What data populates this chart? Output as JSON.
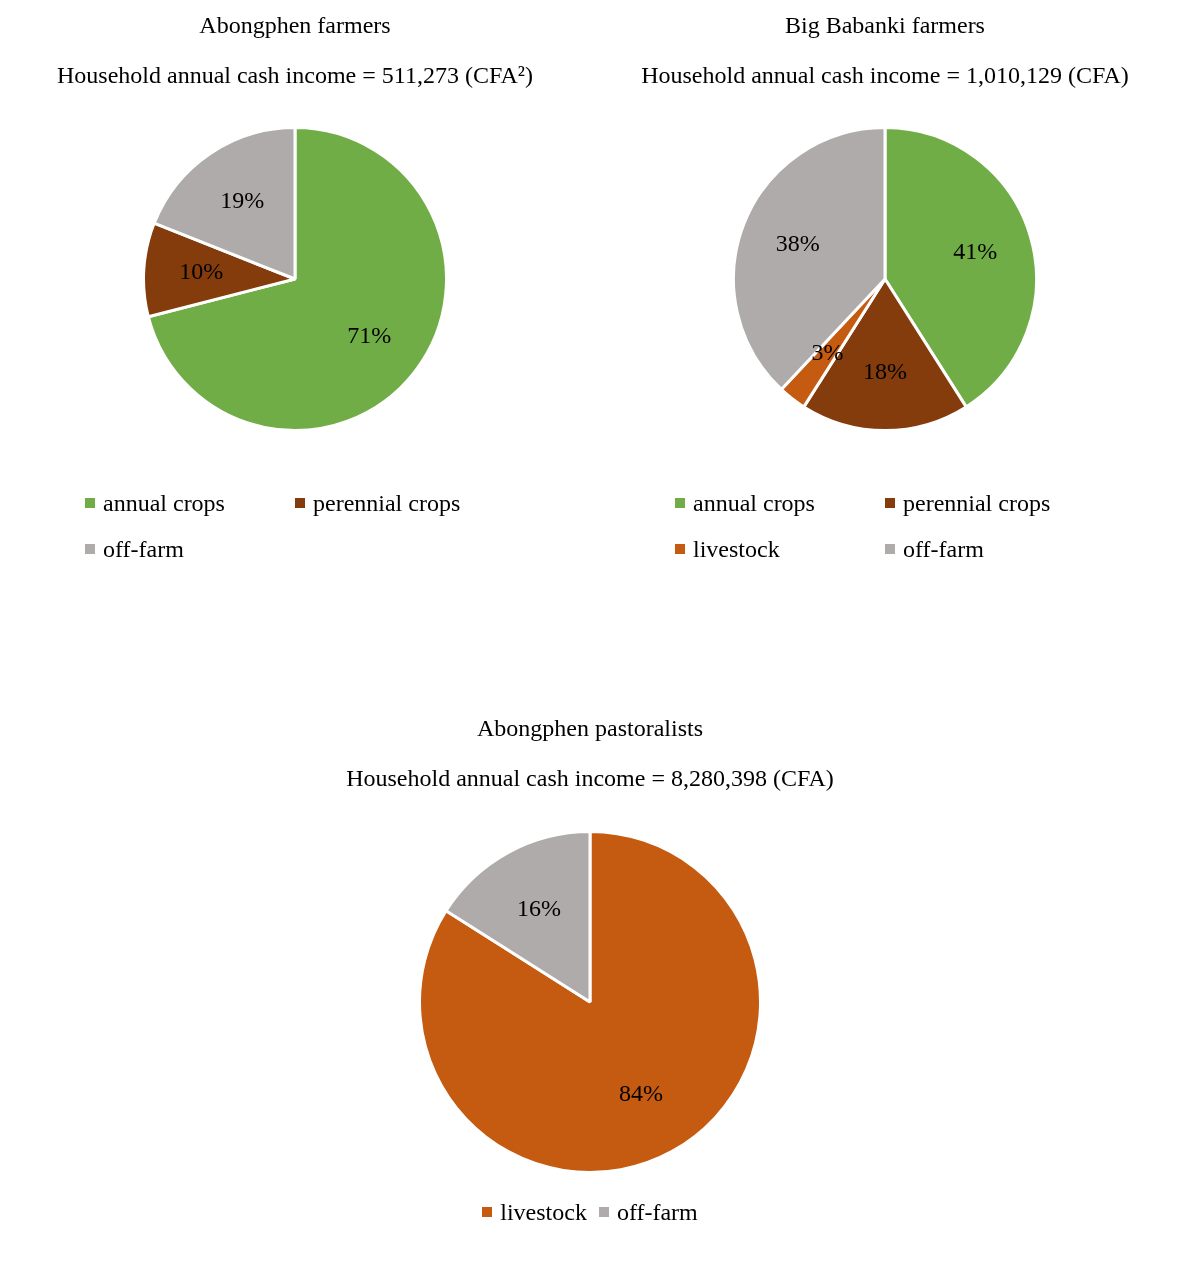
{
  "chart_data": [
    {
      "type": "pie",
      "title": "Abongphen farmers",
      "subtitle": "Household annual cash income = 511,273 (CFA²)",
      "categories": [
        "annual crops",
        "perennial crops",
        "off-farm"
      ],
      "values": [
        71,
        10,
        19
      ],
      "value_labels": [
        "71%",
        "10%",
        "19%"
      ],
      "colors": [
        "#70ad47",
        "#843c0c",
        "#afabab"
      ],
      "legend": "bottom"
    },
    {
      "type": "pie",
      "title": "Big Babanki farmers",
      "subtitle": "Household annual cash income = 1,010,129 (CFA)",
      "categories": [
        "annual crops",
        "perennial crops",
        "livestock",
        "off-farm"
      ],
      "values": [
        41,
        18,
        3,
        38
      ],
      "value_labels": [
        "41%",
        "18%",
        "3%",
        "38%"
      ],
      "colors": [
        "#70ad47",
        "#843c0c",
        "#c55a11",
        "#afabab"
      ],
      "legend": "bottom"
    },
    {
      "type": "pie",
      "title": "Abongphen pastoralists",
      "subtitle": "Household annual cash income = 8,280,398 (CFA)",
      "categories": [
        "livestock",
        "off-farm"
      ],
      "values": [
        84,
        16
      ],
      "value_labels": [
        "84%",
        "16%"
      ],
      "colors": [
        "#c55a11",
        "#afabab"
      ],
      "legend": "bottom"
    }
  ]
}
